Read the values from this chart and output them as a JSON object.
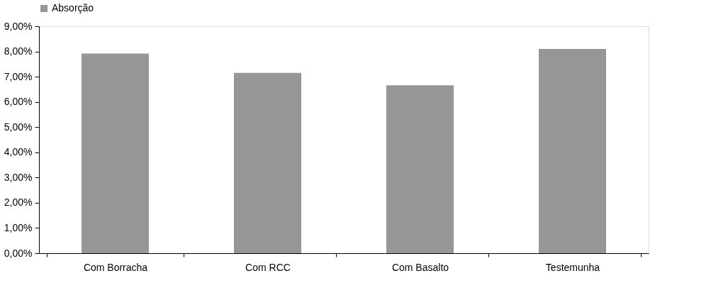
{
  "chart_data": {
    "type": "bar",
    "categories": [
      "Com Borracha",
      "Com RCC",
      "Com Basalto",
      "Testemunha"
    ],
    "series": [
      {
        "name": "Absorção",
        "color": "#969696",
        "values": [
          7.92,
          7.15,
          6.66,
          8.1
        ]
      }
    ],
    "ylim": [
      0,
      9
    ],
    "yticks": [
      {
        "value": 0,
        "label": "0,00%"
      },
      {
        "value": 1,
        "label": "1,00%"
      },
      {
        "value": 2,
        "label": "2,00%"
      },
      {
        "value": 3,
        "label": "3,00%"
      },
      {
        "value": 4,
        "label": "4,00%"
      },
      {
        "value": 5,
        "label": "5,00%"
      },
      {
        "value": 6,
        "label": "6,00%"
      },
      {
        "value": 7,
        "label": "7,00%"
      },
      {
        "value": 8,
        "label": "8,00%"
      },
      {
        "value": 9,
        "label": "9,00%"
      }
    ],
    "grid": false,
    "legend": "top"
  }
}
